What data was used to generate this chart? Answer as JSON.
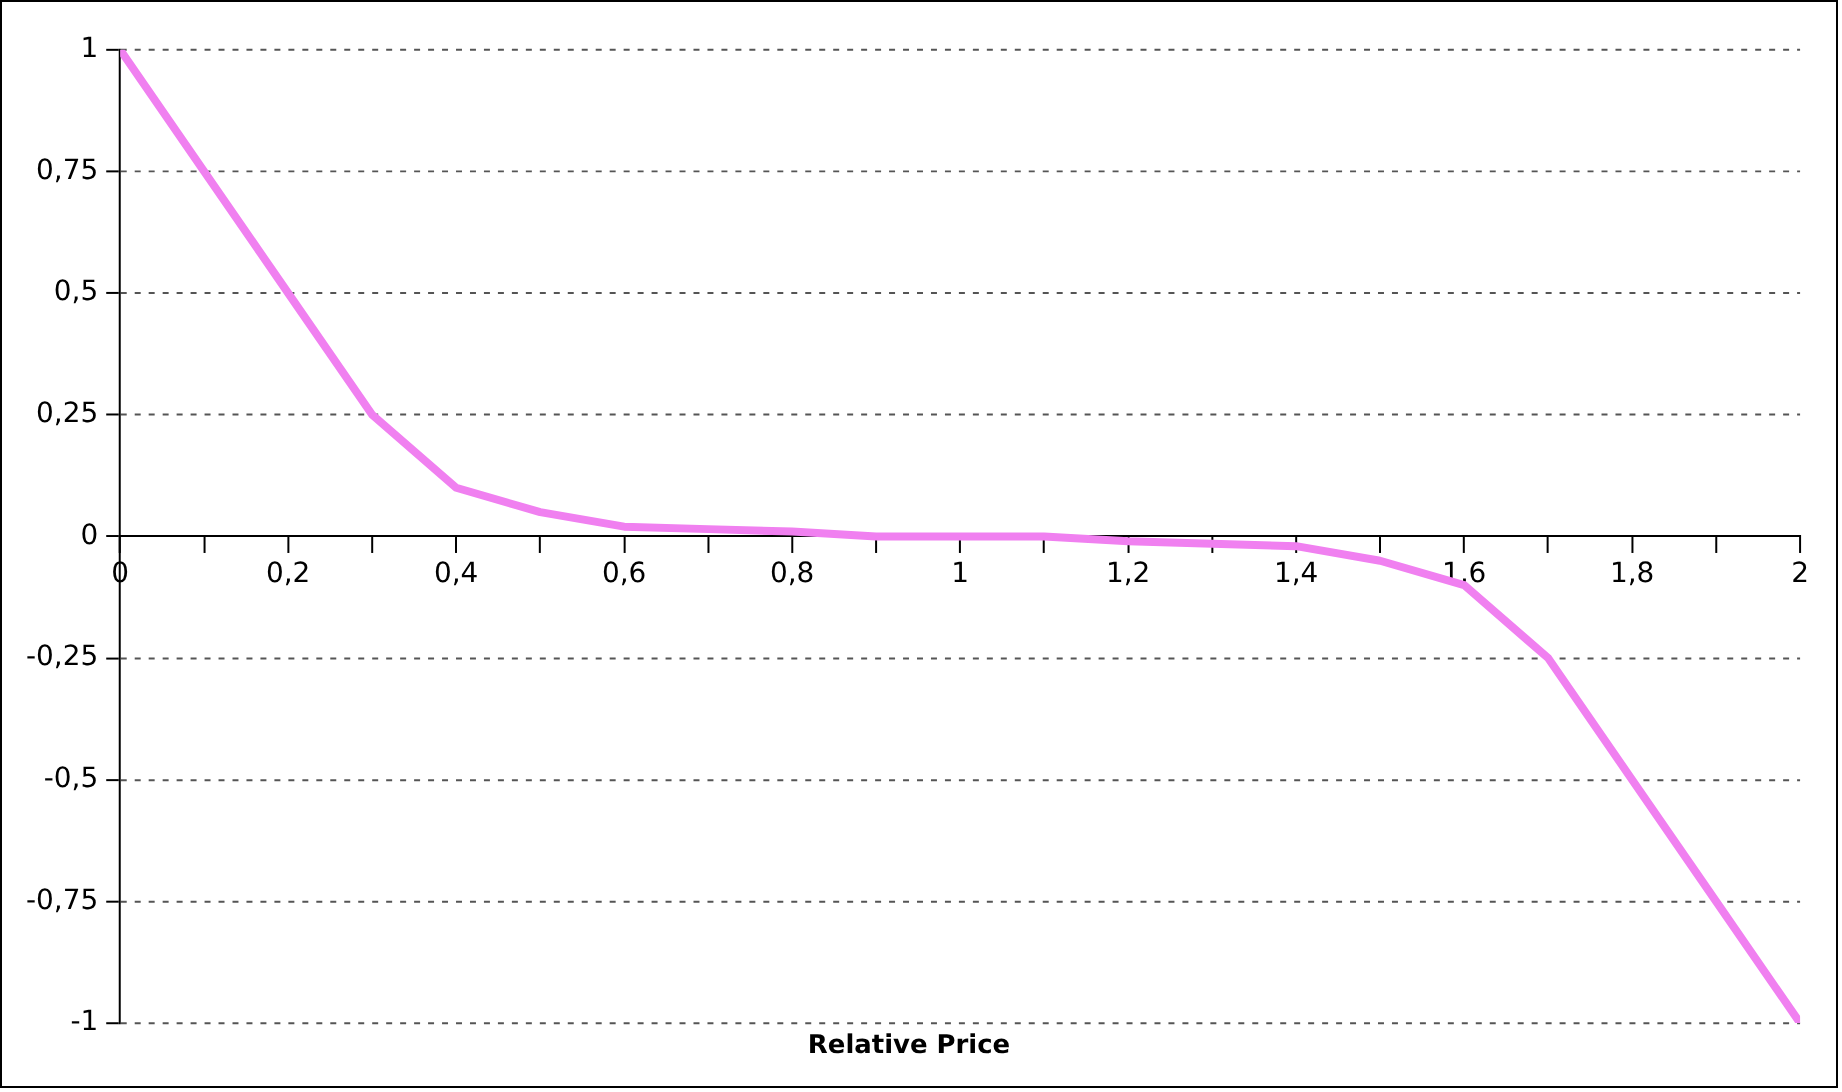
{
  "chart_data": {
    "type": "line",
    "xlabel": "Relative Price",
    "x": [
      0,
      0.1,
      0.2,
      0.3,
      0.4,
      0.5,
      0.6,
      0.7,
      0.8,
      0.9,
      1,
      1.1,
      1.2,
      1.3,
      1.4,
      1.5,
      1.6,
      1.7,
      1.8,
      1.9,
      2
    ],
    "series": [
      {
        "color": "#f080f0",
        "values": [
          1,
          0.75,
          0.5,
          0.25,
          0.1,
          0.05,
          0.02,
          0.015,
          0.01,
          0,
          0,
          0,
          -0.01,
          -0.015,
          -0.02,
          -0.05,
          -0.1,
          -0.25,
          -0.5,
          -0.75,
          -1
        ]
      }
    ],
    "xlim": [
      0,
      2
    ],
    "xticks": [
      0,
      {
        "value": 0.1,
        "label": null
      },
      {
        "value": 0.2,
        "label": "0,2"
      },
      {
        "value": 0.3,
        "label": null
      },
      {
        "value": 0.4,
        "label": "0,4"
      },
      {
        "value": 0.5,
        "label": null
      },
      {
        "value": 0.6,
        "label": "0,6"
      },
      {
        "value": 0.7,
        "label": null
      },
      {
        "value": 0.8,
        "label": "0,8"
      },
      {
        "value": 0.9,
        "label": null
      },
      1,
      {
        "value": 1.1,
        "label": null
      },
      {
        "value": 1.2,
        "label": "1,2"
      },
      {
        "value": 1.3,
        "label": null
      },
      {
        "value": 1.4,
        "label": "1,4"
      },
      {
        "value": 1.5,
        "label": null
      },
      {
        "value": 1.6,
        "label": "1,6"
      },
      {
        "value": 1.7,
        "label": null
      },
      {
        "value": 1.8,
        "label": "1,8"
      },
      {
        "value": 1.9,
        "label": null
      },
      2
    ],
    "ylim": [
      -1,
      1
    ],
    "yticks": [
      -1,
      {
        "value": -0.75,
        "label": "-0,75"
      },
      {
        "value": -0.5,
        "label": "-0,5"
      },
      {
        "value": -0.25,
        "label": "-0,25"
      },
      0,
      {
        "value": 0.25,
        "label": "0,25"
      },
      {
        "value": 0.5,
        "label": "0,5"
      },
      {
        "value": 0.75,
        "label": "0,75"
      },
      1
    ],
    "grid": "y",
    "legend": false,
    "marker": "none",
    "line_style": "solid"
  }
}
